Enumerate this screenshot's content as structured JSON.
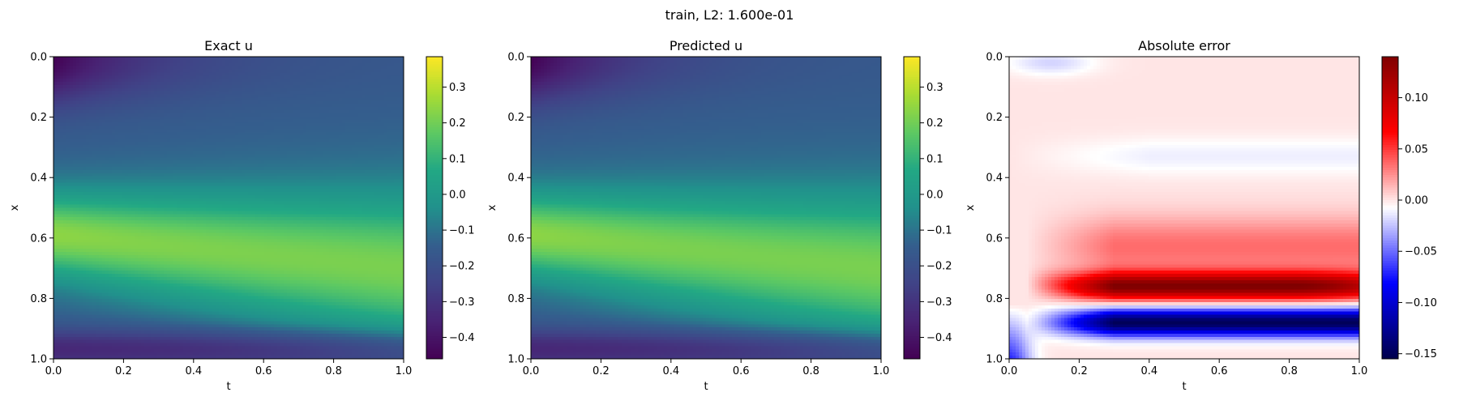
{
  "figure": {
    "suptitle": "train, L2: 1.600e-01"
  },
  "chart_data": [
    {
      "type": "heatmap",
      "title": "Exact u",
      "xlabel": "t",
      "ylabel": "x",
      "xlim": [
        0.0,
        1.0
      ],
      "ylim": [
        1.0,
        0.0
      ],
      "x_ticks": [
        "0.0",
        "0.2",
        "0.4",
        "0.6",
        "0.8",
        "1.0"
      ],
      "y_ticks": [
        "0.0",
        "0.2",
        "0.4",
        "0.6",
        "0.8",
        "1.0"
      ],
      "colormap": "viridis",
      "colorbar": {
        "vmin": -0.46,
        "vmax": 0.385,
        "ticks": [
          "0.3",
          "0.2",
          "0.1",
          "0.0",
          "−0.1",
          "−0.2",
          "−0.3",
          "−0.4"
        ],
        "tick_values": [
          0.3,
          0.2,
          0.1,
          0.0,
          -0.1,
          -0.2,
          -0.3,
          -0.4
        ]
      },
      "field": "exact"
    },
    {
      "type": "heatmap",
      "title": "Predicted u",
      "xlabel": "t",
      "ylabel": "x",
      "xlim": [
        0.0,
        1.0
      ],
      "ylim": [
        1.0,
        0.0
      ],
      "x_ticks": [
        "0.0",
        "0.2",
        "0.4",
        "0.6",
        "0.8",
        "1.0"
      ],
      "y_ticks": [
        "0.0",
        "0.2",
        "0.4",
        "0.6",
        "0.8",
        "1.0"
      ],
      "colormap": "viridis",
      "colorbar": {
        "vmin": -0.46,
        "vmax": 0.385,
        "ticks": [
          "0.3",
          "0.2",
          "0.1",
          "0.0",
          "−0.1",
          "−0.2",
          "−0.3",
          "−0.4"
        ],
        "tick_values": [
          0.3,
          0.2,
          0.1,
          0.0,
          -0.1,
          -0.2,
          -0.3,
          -0.4
        ]
      },
      "field": "predicted"
    },
    {
      "type": "heatmap",
      "title": "Absolute error",
      "xlabel": "t",
      "ylabel": "x",
      "xlim": [
        0.0,
        1.0
      ],
      "ylim": [
        1.0,
        0.0
      ],
      "x_ticks": [
        "0.0",
        "0.2",
        "0.4",
        "0.6",
        "0.8",
        "1.0"
      ],
      "y_ticks": [
        "0.0",
        "0.2",
        "0.4",
        "0.6",
        "0.8",
        "1.0"
      ],
      "colormap": "seismic",
      "colorbar": {
        "vmin": -0.155,
        "vmax": 0.14,
        "ticks": [
          "0.10",
          "0.05",
          "0.00",
          "−0.05",
          "−0.10",
          "−0.15"
        ],
        "tick_values": [
          0.1,
          0.05,
          0.0,
          -0.05,
          -0.1,
          -0.15
        ]
      },
      "field": "error"
    }
  ]
}
